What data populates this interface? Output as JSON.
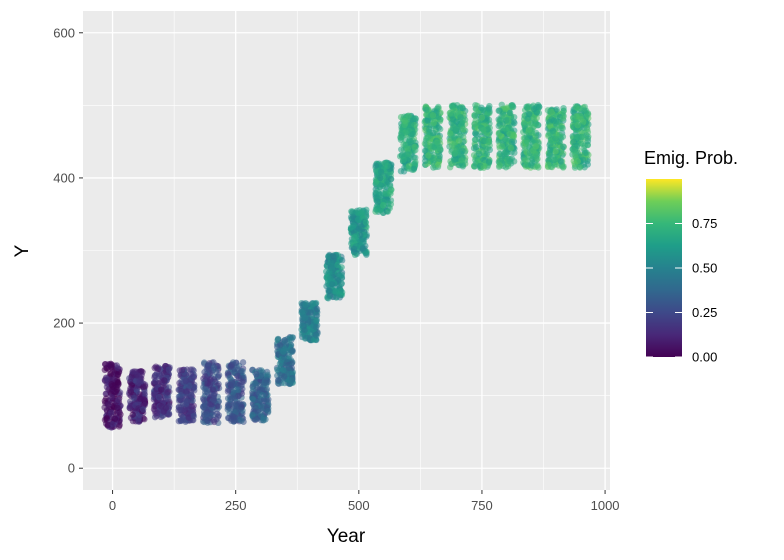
{
  "chart_data": {
    "type": "scatter",
    "title": "",
    "xlabel": "Year",
    "ylabel": "Y",
    "xlim": [
      -60,
      1010
    ],
    "ylim": [
      -30,
      630
    ],
    "x_ticks": [
      0,
      250,
      500,
      750,
      1000
    ],
    "x_tick_labels": [
      "0",
      "250",
      "500",
      "750",
      "1000"
    ],
    "y_ticks": [
      0,
      200,
      400,
      600
    ],
    "y_tick_labels": [
      "0",
      "200",
      "400",
      "600"
    ],
    "grid": true,
    "legend": {
      "title": "Emig. Prob.",
      "position": "right",
      "scale": "viridis",
      "range": [
        0,
        1
      ],
      "ticks": [
        0,
        0.25,
        0.5,
        0.75
      ],
      "tick_labels": [
        "0.00",
        "0.25",
        "0.50",
        "0.75"
      ]
    },
    "groups": [
      {
        "x": 0,
        "y_min": 52,
        "y_max": 148,
        "emig_prob": 0.05
      },
      {
        "x": 50,
        "y_min": 60,
        "y_max": 138,
        "emig_prob": 0.12
      },
      {
        "x": 100,
        "y_min": 65,
        "y_max": 145,
        "emig_prob": 0.15
      },
      {
        "x": 150,
        "y_min": 60,
        "y_max": 140,
        "emig_prob": 0.22
      },
      {
        "x": 200,
        "y_min": 58,
        "y_max": 150,
        "emig_prob": 0.25
      },
      {
        "x": 250,
        "y_min": 60,
        "y_max": 150,
        "emig_prob": 0.3
      },
      {
        "x": 300,
        "y_min": 62,
        "y_max": 140,
        "emig_prob": 0.35
      },
      {
        "x": 350,
        "y_min": 112,
        "y_max": 185,
        "emig_prob": 0.42
      },
      {
        "x": 400,
        "y_min": 172,
        "y_max": 232,
        "emig_prob": 0.48
      },
      {
        "x": 450,
        "y_min": 230,
        "y_max": 298,
        "emig_prob": 0.55
      },
      {
        "x": 500,
        "y_min": 290,
        "y_max": 360,
        "emig_prob": 0.6
      },
      {
        "x": 550,
        "y_min": 348,
        "y_max": 425,
        "emig_prob": 0.65
      },
      {
        "x": 600,
        "y_min": 405,
        "y_max": 490,
        "emig_prob": 0.7
      },
      {
        "x": 650,
        "y_min": 410,
        "y_max": 505,
        "emig_prob": 0.72
      },
      {
        "x": 700,
        "y_min": 410,
        "y_max": 505,
        "emig_prob": 0.72
      },
      {
        "x": 750,
        "y_min": 410,
        "y_max": 505,
        "emig_prob": 0.72
      },
      {
        "x": 800,
        "y_min": 410,
        "y_max": 505,
        "emig_prob": 0.72
      },
      {
        "x": 850,
        "y_min": 410,
        "y_max": 505,
        "emig_prob": 0.72
      },
      {
        "x": 900,
        "y_min": 410,
        "y_max": 502,
        "emig_prob": 0.72
      },
      {
        "x": 950,
        "y_min": 410,
        "y_max": 505,
        "emig_prob": 0.72
      }
    ]
  }
}
